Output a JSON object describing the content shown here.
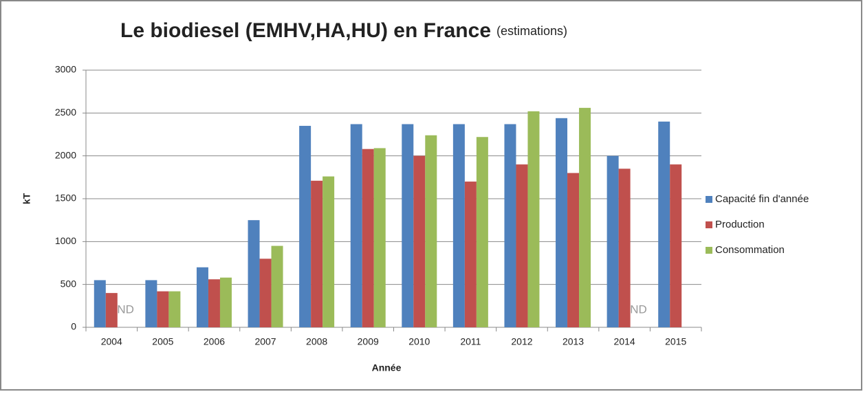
{
  "chart_data": {
    "type": "bar",
    "title": "Le biodiesel (EMHV,HA,HU) en France",
    "subtitle": "(estimations)",
    "x_label": "Année",
    "y_label": "kT",
    "categories": [
      "2004",
      "2005",
      "2006",
      "2007",
      "2008",
      "2009",
      "2010",
      "2011",
      "2012",
      "2013",
      "2014",
      "2015"
    ],
    "series": [
      {
        "name": "Capacité fin d'année",
        "color": "#4f81bd",
        "values": [
          550,
          550,
          700,
          1250,
          2350,
          2370,
          2370,
          2370,
          2370,
          2440,
          2000,
          2400
        ]
      },
      {
        "name": "Production",
        "color": "#c0504d",
        "values": [
          400,
          420,
          560,
          800,
          1710,
          2080,
          2000,
          1700,
          1900,
          1800,
          1850,
          1900
        ]
      },
      {
        "name": "Consommation",
        "color": "#9bbb59",
        "values": [
          null,
          420,
          580,
          950,
          1760,
          2090,
          2240,
          2220,
          2520,
          2560,
          null,
          null
        ]
      }
    ],
    "annotations": [
      {
        "text": "ND",
        "category": "2004"
      },
      {
        "text": "ND",
        "category": "2014"
      }
    ],
    "ylim": [
      0,
      3000
    ],
    "yticks": [
      0,
      500,
      1000,
      1500,
      2000,
      2500,
      3000
    ],
    "grid": true,
    "legend": "right"
  }
}
